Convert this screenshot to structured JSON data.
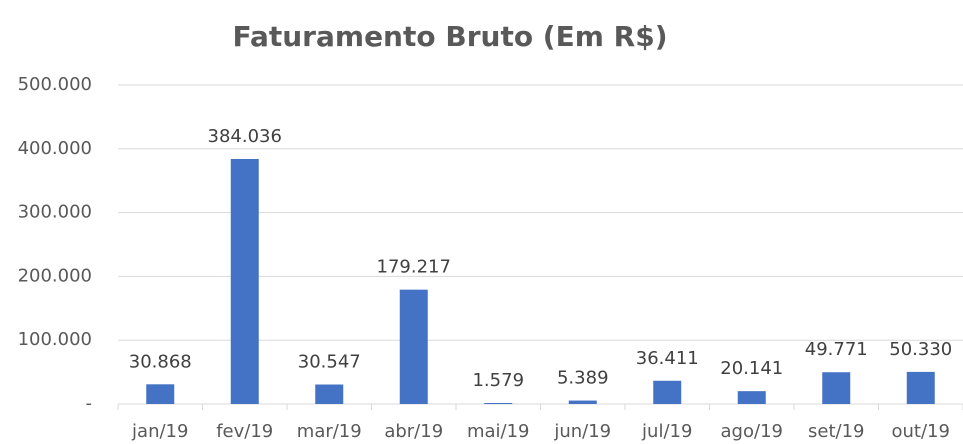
{
  "chart_data": {
    "type": "bar",
    "title": "Faturamento Bruto (Em R$)",
    "categories": [
      "jan/19",
      "fev/19",
      "mar/19",
      "abr/19",
      "mai/19",
      "jun/19",
      "jul/19",
      "ago/19",
      "set/19",
      "out/19"
    ],
    "values": [
      30868,
      384036,
      30547,
      179217,
      1579,
      5389,
      36411,
      20141,
      49771,
      50330
    ],
    "value_labels": [
      "30.868",
      "384.036",
      "30.547",
      "179.217",
      "1.579",
      "5.389",
      "36.411",
      "20.141",
      "49.771",
      "50.330"
    ],
    "color": "#4472c4",
    "ylim": [
      0,
      500000
    ],
    "yticks": [
      {
        "value": 0,
        "label": "-"
      },
      {
        "value": 100000,
        "label": "100.000"
      },
      {
        "value": 200000,
        "label": "200.000"
      },
      {
        "value": 300000,
        "label": "300.000"
      },
      {
        "value": 400000,
        "label": "400.000"
      },
      {
        "value": 500000,
        "label": "500.000"
      }
    ],
    "grid": true
  }
}
